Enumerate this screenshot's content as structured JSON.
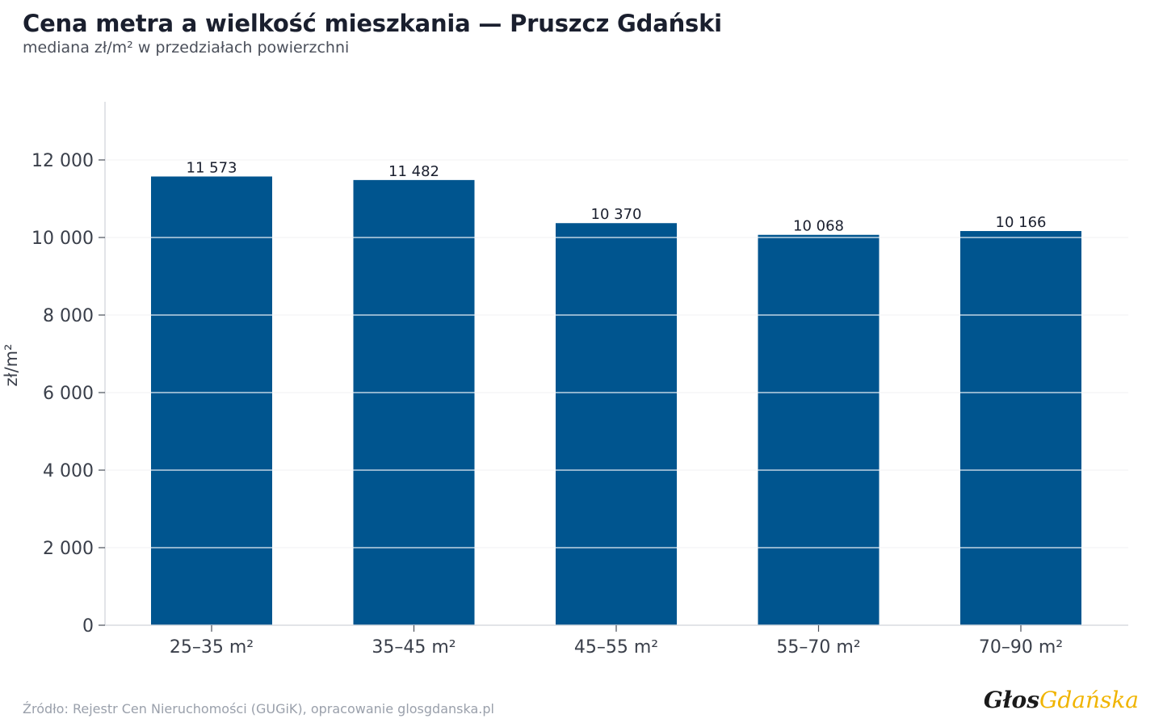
{
  "chart_data": {
    "type": "bar",
    "title": "Cena metra a wielkość mieszkania — Pruszcz Gdański",
    "subtitle": "mediana zł/m² w przedziałach powierzchni",
    "categories": [
      "25–35 m²",
      "35–45 m²",
      "45–55 m²",
      "55–70 m²",
      "70–90 m²"
    ],
    "values": [
      11573,
      11482,
      10370,
      10068,
      10166
    ],
    "value_labels": [
      "11 573",
      "11 482",
      "10 370",
      "10 068",
      "10 166"
    ],
    "ylabel": "zł/m²",
    "xlabel": "",
    "ylim": [
      0,
      13500
    ],
    "yticks": [
      0,
      2000,
      4000,
      6000,
      8000,
      10000,
      12000
    ],
    "ytick_labels": [
      "0",
      "2 000",
      "4 000",
      "6 000",
      "8 000",
      "10 000",
      "12 000"
    ],
    "grid": true,
    "bar_color": "#00558f"
  },
  "footer": {
    "source": "Źródło: Rejestr Cen Nieruchomości (GUGiK), opracowanie glosgdanska.pl",
    "logo_part1": "Głos",
    "logo_part2": "Gdańska"
  }
}
